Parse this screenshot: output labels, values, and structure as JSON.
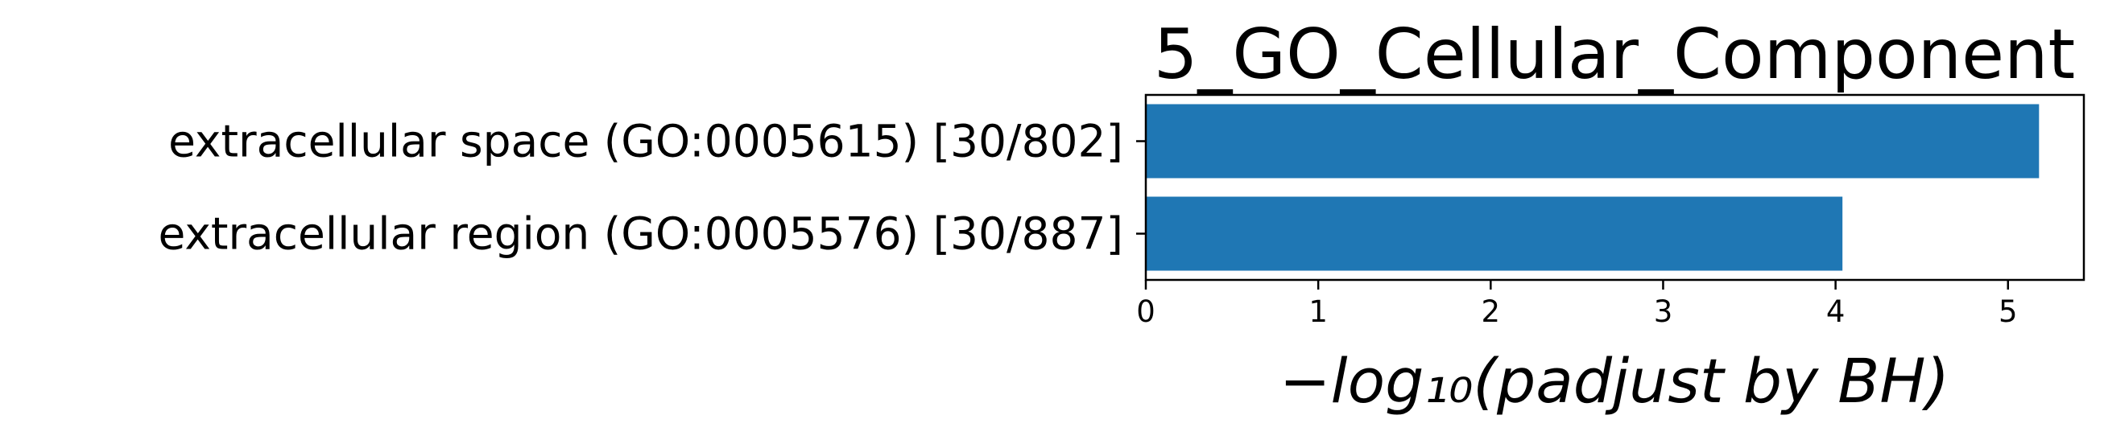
{
  "chart_data": {
    "type": "bar",
    "orientation": "horizontal",
    "title": "5_GO_Cellular_Component",
    "categories": [
      "extracellular space (GO:0005615) [30/802]",
      "extracellular region (GO:0005576) [30/887]"
    ],
    "values": [
      5.18,
      4.04
    ],
    "xlabel": "−log₁₀(padjust by BH)",
    "xticks": [
      "0",
      "1",
      "2",
      "3",
      "4",
      "5"
    ],
    "xlim": [
      0,
      5.44
    ],
    "grid": false,
    "bar_color": "#1f77b4"
  }
}
